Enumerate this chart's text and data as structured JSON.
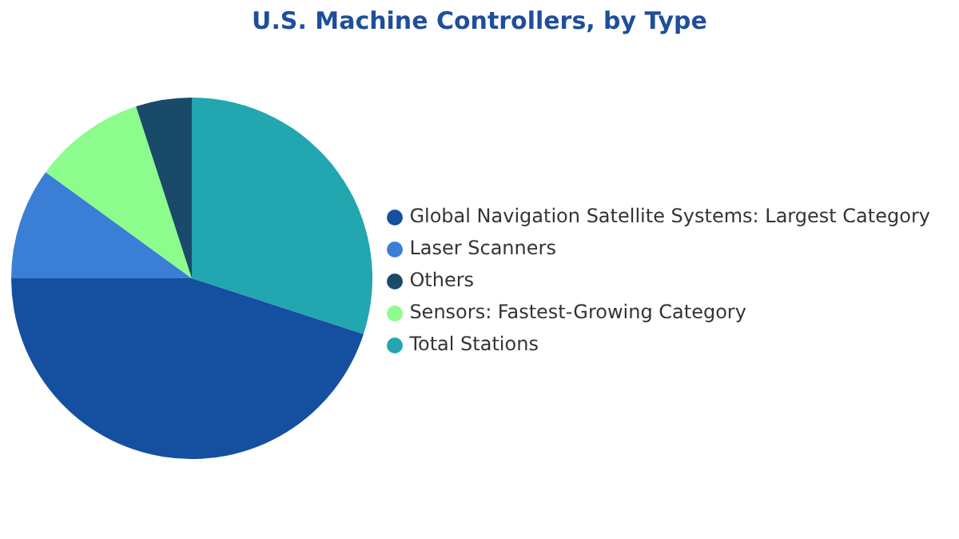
{
  "chart_data": {
    "type": "pie",
    "title": "U.S. Machine Controllers, by Type",
    "categories": [
      "Total Stations",
      "Global Navigation Satellite Systems:  Largest Category",
      "Laser Scanners",
      "Sensors:  Fastest-Growing Category",
      "Others"
    ],
    "values": [
      30,
      45,
      10,
      10,
      5
    ],
    "colors": [
      "#22a6b0",
      "#154fa0",
      "#3a7fd5",
      "#8cfc8c",
      "#1a4a6a"
    ],
    "legend": "right"
  }
}
